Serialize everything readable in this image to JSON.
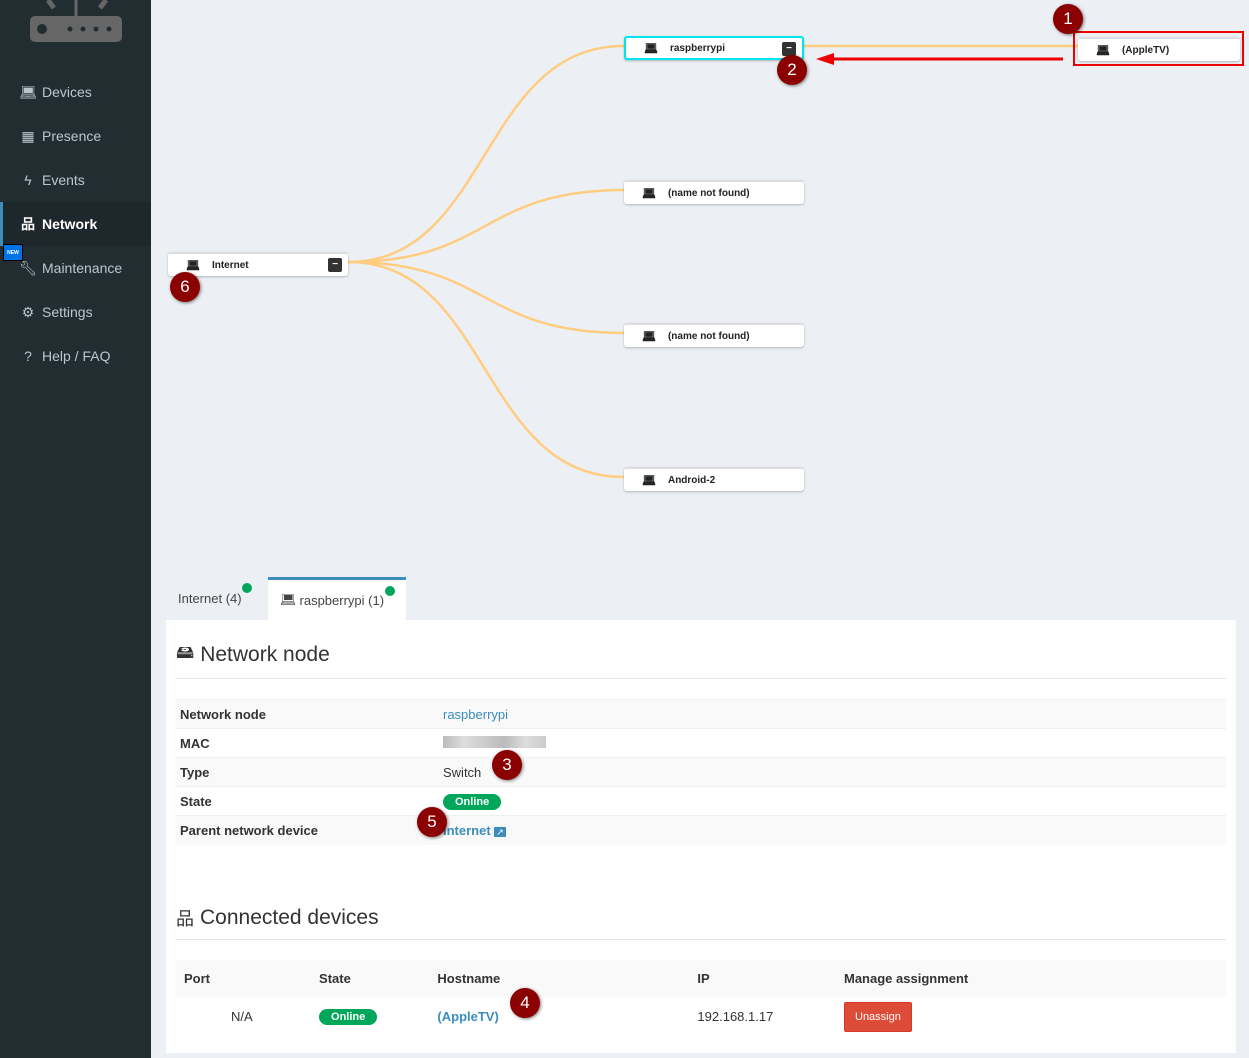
{
  "sidebar": {
    "items": [
      {
        "label": "Devices",
        "icon": "laptop-icon"
      },
      {
        "label": "Presence",
        "icon": "calendar-icon"
      },
      {
        "label": "Events",
        "icon": "bolt-icon"
      },
      {
        "label": "Network",
        "icon": "sitemap-icon",
        "active": true
      },
      {
        "label": "Maintenance",
        "icon": "wrench-icon",
        "badge": "NEW"
      },
      {
        "label": "Settings",
        "icon": "gear-icon"
      },
      {
        "label": "Help / FAQ",
        "icon": "question-icon"
      }
    ]
  },
  "tree": {
    "root": "Internet",
    "children": [
      "raspberrypi",
      "(name not found)",
      "(name not found)",
      "Android-2"
    ],
    "grandchild": "(AppleTV)",
    "link_color": "#ffcc80"
  },
  "markers": [
    "1",
    "2",
    "3",
    "4",
    "5",
    "6"
  ],
  "tabs": [
    {
      "label": "Internet (4)"
    },
    {
      "label": "raspberrypi (1)",
      "active": true
    }
  ],
  "node_section": {
    "title": "Network node",
    "rows": [
      {
        "label": "Network node",
        "value": "raspberrypi"
      },
      {
        "label": "MAC",
        "value": ""
      },
      {
        "label": "Type",
        "value": "Switch"
      },
      {
        "label": "State",
        "value": "Online"
      },
      {
        "label": "Parent network device",
        "value": "Internet"
      }
    ]
  },
  "connected": {
    "title": "Connected devices",
    "headers": [
      "Port",
      "State",
      "Hostname",
      "IP",
      "Manage assignment"
    ],
    "rows": [
      {
        "port": "N/A",
        "state": "Online",
        "hostname": "(AppleTV)",
        "ip": "192.168.1.17",
        "action": "Unassign"
      }
    ]
  }
}
